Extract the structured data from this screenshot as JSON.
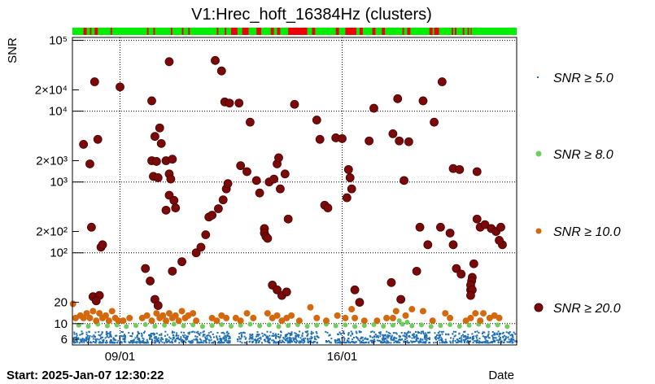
{
  "chart_data": {
    "type": "scatter",
    "title": "V1:Hrec_hoft_16384Hz (clusters)",
    "xlabel": "Date",
    "ylabel": "SNR",
    "start_label": "Start: 2025-Jan-07 12:30:22",
    "x_unit": "days since start",
    "xlim": [
      0,
      14.0
    ],
    "ylim": [
      5,
      110000
    ],
    "y_scale": "log",
    "x_ticks": [
      {
        "label": "09/01",
        "x": 1.5
      },
      {
        "label": "16/01",
        "x": 8.5
      }
    ],
    "y_ticks": [
      {
        "label": "6",
        "v": 6
      },
      {
        "label": "10",
        "v": 10
      },
      {
        "label": "20",
        "v": 20
      },
      {
        "label": "10²",
        "v": 100
      },
      {
        "label": "2×10²",
        "v": 200
      },
      {
        "label": "10³",
        "v": 1000
      },
      {
        "label": "2×10³",
        "v": 2000
      },
      {
        "label": "10⁴",
        "v": 10000
      },
      {
        "label": "2×10⁴",
        "v": 20000
      },
      {
        "label": "10⁵",
        "v": 100000
      }
    ],
    "legend": [
      {
        "label": "SNR ≥ 5.0",
        "color": "#1f6fb4",
        "marker": "dot-small"
      },
      {
        "label": "SNR ≥ 8.0",
        "color": "#6dcc5a",
        "marker": "circle"
      },
      {
        "label": "SNR ≥ 10.0",
        "color": "#d4680c",
        "marker": "circle"
      },
      {
        "label": "SNR ≥ 20.0",
        "color": "#7a0a0a",
        "marker": "circle"
      }
    ],
    "series": [
      {
        "name": "SNR ≥ 20.0",
        "color": "#7a0a0a",
        "points": [
          [
            0.35,
            3400
          ],
          [
            0.55,
            1800
          ],
          [
            0.7,
            26000
          ],
          [
            0.8,
            4000
          ],
          [
            0.6,
            230
          ],
          [
            0.9,
            120
          ],
          [
            0.95,
            130
          ],
          [
            0.65,
            24
          ],
          [
            0.85,
            25
          ],
          [
            0.75,
            21
          ],
          [
            1.5,
            22000
          ],
          [
            2.3,
            60
          ],
          [
            2.45,
            40
          ],
          [
            2.6,
            22
          ],
          [
            2.7,
            18
          ],
          [
            2.5,
            14000
          ],
          [
            2.75,
            5800
          ],
          [
            2.6,
            4400
          ],
          [
            2.8,
            3500
          ],
          [
            2.5,
            2000
          ],
          [
            2.65,
            1950
          ],
          [
            2.55,
            1200
          ],
          [
            2.7,
            1150
          ],
          [
            2.95,
            2000
          ],
          [
            3.15,
            2100
          ],
          [
            3.05,
            1300
          ],
          [
            3.1,
            1100
          ],
          [
            3.05,
            650
          ],
          [
            3.2,
            550
          ],
          [
            2.95,
            400
          ],
          [
            3.25,
            430
          ],
          [
            3.15,
            55
          ],
          [
            3.45,
            75
          ],
          [
            3.05,
            50000
          ],
          [
            4.5,
            52000
          ],
          [
            4.7,
            37000
          ],
          [
            4.8,
            13500
          ],
          [
            4.95,
            13000
          ],
          [
            3.9,
            100
          ],
          [
            4.05,
            120
          ],
          [
            4.2,
            180
          ],
          [
            4.3,
            320
          ],
          [
            4.4,
            340
          ],
          [
            4.6,
            420
          ],
          [
            4.75,
            560
          ],
          [
            4.85,
            800
          ],
          [
            4.9,
            950
          ],
          [
            5.3,
            1700
          ],
          [
            5.5,
            1400
          ],
          [
            5.8,
            1050
          ],
          [
            5.9,
            700
          ],
          [
            5.6,
            7000
          ],
          [
            5.25,
            13000
          ],
          [
            6.2,
            1000
          ],
          [
            6.35,
            1100
          ],
          [
            6.45,
            1800
          ],
          [
            6.5,
            2200
          ],
          [
            6.7,
            1300
          ],
          [
            6.55,
            800
          ],
          [
            6.8,
            300
          ],
          [
            6.05,
            220
          ],
          [
            6.05,
            190
          ],
          [
            6.1,
            170
          ],
          [
            6.15,
            160
          ],
          [
            6.3,
            35
          ],
          [
            6.45,
            30
          ],
          [
            6.6,
            25
          ],
          [
            6.75,
            28
          ],
          [
            7.0,
            12500
          ],
          [
            7.7,
            7500
          ],
          [
            7.8,
            4000
          ],
          [
            8.3,
            4200
          ],
          [
            8.5,
            4100
          ],
          [
            8.7,
            1500
          ],
          [
            8.75,
            1150
          ],
          [
            8.8,
            800
          ],
          [
            8.65,
            600
          ],
          [
            7.95,
            470
          ],
          [
            8.05,
            430
          ],
          [
            8.9,
            30
          ],
          [
            9.05,
            20
          ],
          [
            9.35,
            3800
          ],
          [
            9.5,
            11000
          ],
          [
            10.1,
            4800
          ],
          [
            10.3,
            3800
          ],
          [
            10.25,
            15000
          ],
          [
            10.6,
            3700
          ],
          [
            10.45,
            1050
          ],
          [
            10.05,
            38
          ],
          [
            10.35,
            22
          ],
          [
            10.85,
            55
          ],
          [
            11.05,
            14000
          ],
          [
            11.4,
            7000
          ],
          [
            11.65,
            26000
          ],
          [
            10.95,
            230
          ],
          [
            11.2,
            130
          ],
          [
            11.6,
            230
          ],
          [
            12.0,
            1550
          ],
          [
            12.2,
            1500
          ],
          [
            11.9,
            190
          ],
          [
            12.0,
            130
          ],
          [
            12.1,
            60
          ],
          [
            12.25,
            50
          ],
          [
            12.55,
            30
          ],
          [
            12.75,
            1400
          ],
          [
            12.75,
            300
          ],
          [
            12.85,
            230
          ],
          [
            12.65,
            70
          ],
          [
            12.6,
            45
          ],
          [
            12.58,
            40
          ],
          [
            12.55,
            35
          ],
          [
            12.6,
            30
          ],
          [
            12.55,
            25
          ],
          [
            13.0,
            250
          ],
          [
            13.2,
            220
          ],
          [
            13.35,
            200
          ],
          [
            13.5,
            230
          ],
          [
            13.55,
            130
          ],
          [
            13.45,
            150
          ]
        ]
      },
      {
        "name": "SNR ≥ 10.0",
        "color": "#d4680c",
        "points": [
          [
            0.02,
            19
          ],
          [
            0.1,
            12
          ],
          [
            0.25,
            13
          ],
          [
            0.35,
            12
          ],
          [
            0.45,
            14
          ],
          [
            0.55,
            12
          ],
          [
            0.65,
            15
          ],
          [
            0.75,
            11
          ],
          [
            0.85,
            14
          ],
          [
            0.95,
            12
          ],
          [
            1.05,
            13
          ],
          [
            1.15,
            11
          ],
          [
            1.25,
            15
          ],
          [
            1.35,
            12
          ],
          [
            1.45,
            11
          ],
          [
            1.6,
            11
          ],
          [
            1.8,
            12
          ],
          [
            2.2,
            12
          ],
          [
            2.35,
            13
          ],
          [
            2.5,
            11
          ],
          [
            2.65,
            14
          ],
          [
            2.75,
            12
          ],
          [
            2.85,
            13
          ],
          [
            2.95,
            11
          ],
          [
            3.05,
            14
          ],
          [
            3.15,
            12
          ],
          [
            3.25,
            13
          ],
          [
            3.35,
            11
          ],
          [
            3.45,
            15
          ],
          [
            3.55,
            12
          ],
          [
            3.65,
            13
          ],
          [
            3.8,
            14
          ],
          [
            3.9,
            11
          ],
          [
            4.4,
            12
          ],
          [
            4.55,
            11
          ],
          [
            4.7,
            13
          ],
          [
            4.85,
            12
          ],
          [
            5.15,
            12
          ],
          [
            5.3,
            11
          ],
          [
            5.5,
            14
          ],
          [
            5.7,
            12
          ],
          [
            6.15,
            14
          ],
          [
            6.3,
            12
          ],
          [
            6.45,
            13
          ],
          [
            6.6,
            11
          ],
          [
            6.75,
            12
          ],
          [
            6.9,
            13
          ],
          [
            7.15,
            11
          ],
          [
            7.5,
            17
          ],
          [
            7.7,
            12
          ],
          [
            8.0,
            11
          ],
          [
            8.35,
            13
          ],
          [
            8.6,
            12
          ],
          [
            8.8,
            16
          ],
          [
            8.9,
            12
          ],
          [
            9.2,
            11
          ],
          [
            9.6,
            11
          ],
          [
            9.9,
            12
          ],
          [
            10.1,
            12
          ],
          [
            10.2,
            15
          ],
          [
            10.5,
            13
          ],
          [
            10.7,
            16
          ],
          [
            11.05,
            15
          ],
          [
            11.35,
            11
          ],
          [
            11.75,
            14
          ],
          [
            11.9,
            12
          ],
          [
            12.4,
            11
          ],
          [
            12.55,
            12
          ],
          [
            12.7,
            14
          ],
          [
            12.85,
            11
          ],
          [
            12.95,
            14
          ],
          [
            13.15,
            12
          ],
          [
            13.3,
            13
          ],
          [
            13.45,
            12
          ]
        ]
      },
      {
        "name": "SNR ≥ 8.0",
        "color": "#6dcc5a",
        "points": [
          [
            0.2,
            9.5
          ],
          [
            0.5,
            9.2
          ],
          [
            0.8,
            9.8
          ],
          [
            1.1,
            9.3
          ],
          [
            1.4,
            9.6
          ],
          [
            1.7,
            9.1
          ],
          [
            2.0,
            9.4
          ],
          [
            2.3,
            9.7
          ],
          [
            2.6,
            9.2
          ],
          [
            2.9,
            9.5
          ],
          [
            3.2,
            9.8
          ],
          [
            3.5,
            9.3
          ],
          [
            3.8,
            9.6
          ],
          [
            4.1,
            9.1
          ],
          [
            4.4,
            9.4
          ],
          [
            4.7,
            9.7
          ],
          [
            5.0,
            9.2
          ],
          [
            5.3,
            9.5
          ],
          [
            5.6,
            9.8
          ],
          [
            5.9,
            9.3
          ],
          [
            6.2,
            9.6
          ],
          [
            6.5,
            9.1
          ],
          [
            6.8,
            9.4
          ],
          [
            7.1,
            9.7
          ],
          [
            7.4,
            9.2
          ],
          [
            7.7,
            9.5
          ],
          [
            8.0,
            9.8
          ],
          [
            8.3,
            9.3
          ],
          [
            8.6,
            9.6
          ],
          [
            8.9,
            9.1
          ],
          [
            9.2,
            9.4
          ],
          [
            9.5,
            9.7
          ],
          [
            9.8,
            9.2
          ],
          [
            10.1,
            9.5
          ],
          [
            10.4,
            9.8
          ],
          [
            10.7,
            9.3
          ],
          [
            11.0,
            9.6
          ],
          [
            11.3,
            9.1
          ],
          [
            11.6,
            9.4
          ],
          [
            11.9,
            9.7
          ],
          [
            12.2,
            9.2
          ],
          [
            12.5,
            9.5
          ],
          [
            12.8,
            9.8
          ],
          [
            13.1,
            9.3
          ],
          [
            13.4,
            9.6
          ],
          [
            13.7,
            9.1
          ],
          [
            3.35,
            11
          ],
          [
            10.3,
            11
          ],
          [
            10.55,
            10.5
          ]
        ]
      },
      {
        "name": "SNR ≥ 5.0",
        "color": "#1f6fb4",
        "band": {
          "from": 5.5,
          "to": 8.0
        },
        "gaps": [
          [
            1.65,
            1.75
          ],
          [
            4.95,
            5.15
          ],
          [
            5.45,
            5.55
          ],
          [
            7.75,
            7.95
          ],
          [
            8.15,
            8.25
          ],
          [
            11.25,
            11.35
          ]
        ]
      }
    ],
    "status_bar": {
      "ok_color": "#00ee00",
      "bad_color": "#ee0000",
      "bad_spans": [
        [
          0.35,
          0.45
        ],
        [
          0.55,
          0.6
        ],
        [
          0.7,
          0.8
        ],
        [
          1.2,
          1.25
        ],
        [
          2.35,
          2.4
        ],
        [
          2.55,
          2.6
        ],
        [
          3.1,
          3.15
        ],
        [
          3.45,
          3.5
        ],
        [
          3.65,
          3.7
        ],
        [
          4.55,
          4.6
        ],
        [
          4.8,
          4.85
        ],
        [
          5.0,
          5.1
        ],
        [
          5.1,
          5.2
        ],
        [
          5.35,
          5.55
        ],
        [
          5.8,
          5.95
        ],
        [
          6.25,
          6.35
        ],
        [
          6.45,
          6.55
        ],
        [
          6.8,
          7.4
        ],
        [
          7.55,
          7.65
        ],
        [
          8.3,
          8.4
        ],
        [
          8.6,
          8.95
        ],
        [
          9.05,
          9.15
        ],
        [
          9.45,
          9.55
        ],
        [
          9.75,
          9.85
        ],
        [
          10.4,
          10.45
        ],
        [
          10.55,
          10.65
        ],
        [
          11.25,
          11.35
        ],
        [
          11.4,
          11.55
        ],
        [
          11.95,
          12.0
        ],
        [
          12.05,
          12.1
        ],
        [
          12.3,
          12.35
        ],
        [
          12.45,
          12.5
        ],
        [
          12.55,
          12.58
        ]
      ]
    }
  }
}
